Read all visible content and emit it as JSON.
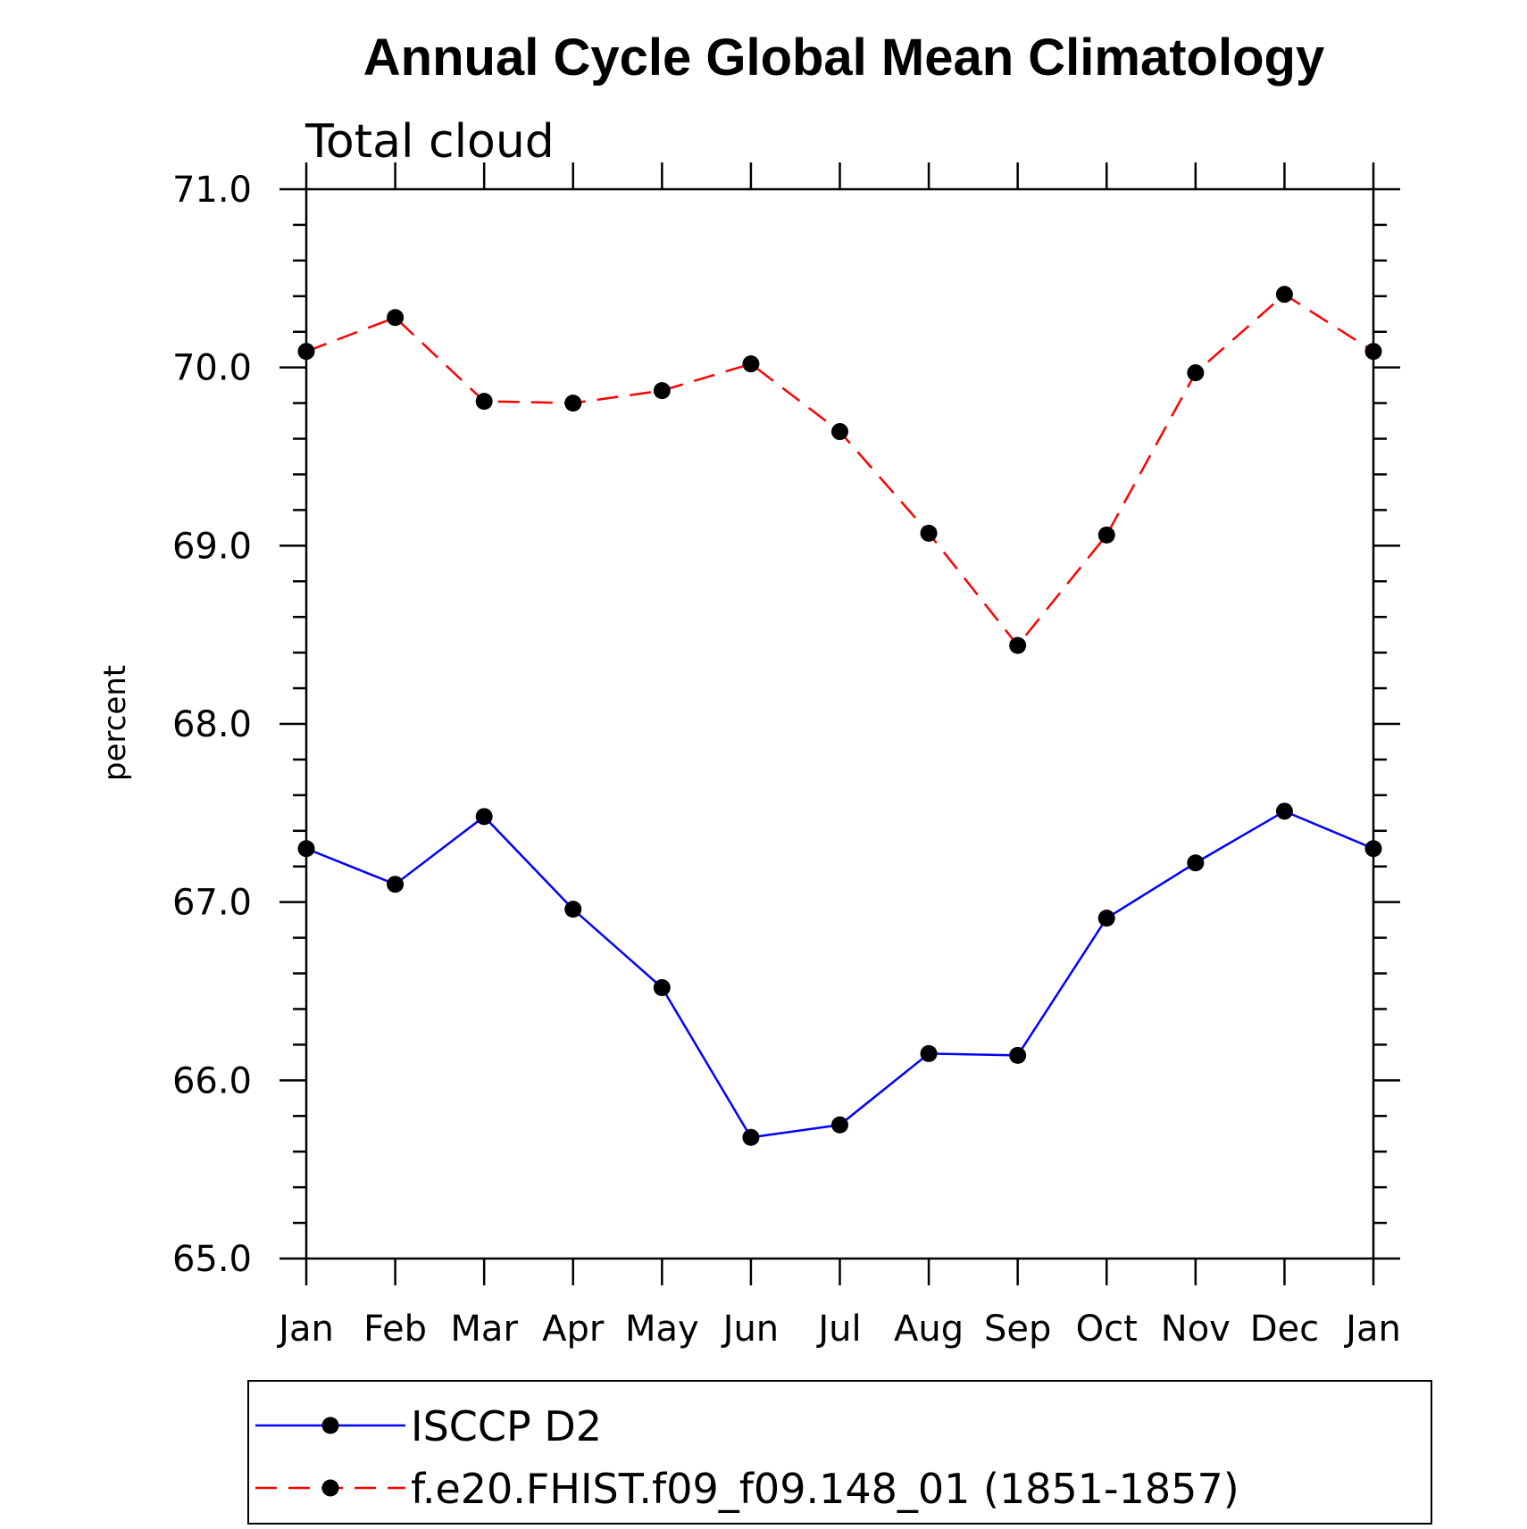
{
  "chart_data": {
    "type": "line",
    "title": "Annual Cycle Global Mean Climatology",
    "subtitle": "Total cloud",
    "xlabel": "",
    "ylabel": "percent",
    "categories": [
      "Jan",
      "Feb",
      "Mar",
      "Apr",
      "May",
      "Jun",
      "Jul",
      "Aug",
      "Sep",
      "Oct",
      "Nov",
      "Dec",
      "Jan"
    ],
    "ylim": [
      65.0,
      71.0
    ],
    "yticks": [
      "65.0",
      "66.0",
      "67.0",
      "68.0",
      "69.0",
      "70.0",
      "71.0"
    ],
    "grid": false,
    "legend_position": "bottom",
    "series": [
      {
        "name": "ISCCP D2",
        "color": "#0000ff",
        "style": "solid",
        "marker": "circle",
        "values": [
          67.3,
          67.1,
          67.48,
          66.96,
          66.52,
          65.68,
          65.75,
          66.15,
          66.14,
          66.91,
          67.22,
          67.51,
          67.3
        ]
      },
      {
        "name": "f.e20.FHIST.f09_f09.148_01 (1851-1857)",
        "color": "#ff0000",
        "style": "dashed",
        "marker": "circle",
        "values": [
          70.09,
          70.28,
          69.81,
          69.8,
          69.87,
          70.02,
          69.64,
          69.07,
          68.44,
          69.06,
          69.97,
          70.41,
          70.09
        ]
      }
    ]
  }
}
